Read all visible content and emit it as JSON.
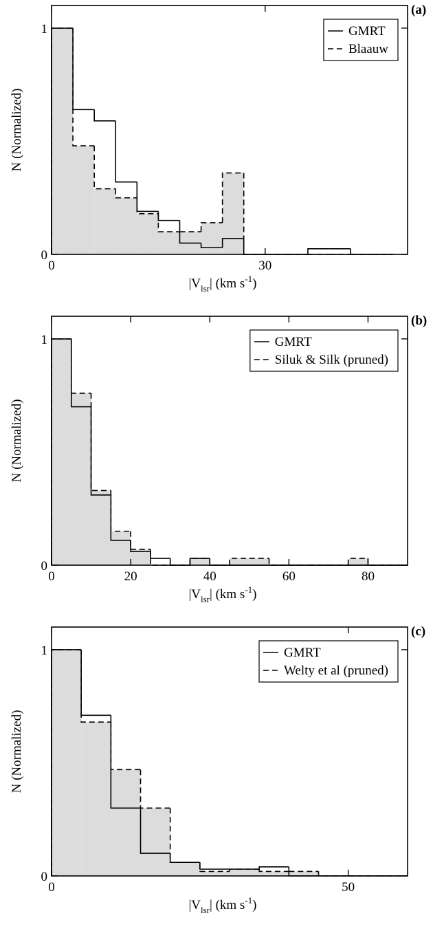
{
  "chart_data": [
    {
      "type": "histogram",
      "panel_label": "(a)",
      "ylabel": "N (Normalized)",
      "xlabel": {
        "start": "|V",
        "sub": "lsr",
        "mid": "| (km s",
        "sup": "-1",
        "end": ")"
      },
      "bins": [
        0,
        3,
        6,
        9,
        12,
        15,
        18,
        21,
        24,
        27,
        30,
        33,
        36,
        39,
        42,
        45,
        48
      ],
      "series": [
        {
          "name": "GMRT",
          "color": "#000000",
          "dash": false,
          "fill": null,
          "values": [
            1,
            0.64,
            0.59,
            0.32,
            0.19,
            0.15,
            0.05,
            0.03,
            0.07,
            0,
            0,
            0,
            0.025,
            0.025,
            0,
            0
          ]
        },
        {
          "name": "Blaauw",
          "color": "#000000",
          "dash": true,
          "fill": "#dcdcdc",
          "values": [
            1,
            0.48,
            0.29,
            0.25,
            0.18,
            0.1,
            0.1,
            0.14,
            0.36,
            0,
            0,
            0,
            0,
            0,
            0,
            0
          ]
        }
      ],
      "xlim": [
        0,
        50
      ],
      "ylim": [
        0,
        1.1
      ],
      "xticks": [
        0,
        30
      ],
      "yticks": [
        0,
        1
      ],
      "legend": "upper right"
    },
    {
      "type": "histogram",
      "panel_label": "(b)",
      "ylabel": "N (Normalized)",
      "xlabel": {
        "start": "|V",
        "sub": "lsr",
        "mid": "| (km s",
        "sup": "-1",
        "end": ")"
      },
      "bins": [
        0,
        5,
        10,
        15,
        20,
        25,
        30,
        35,
        40,
        45,
        50,
        55,
        60,
        65,
        70,
        75,
        80,
        85,
        90
      ],
      "series": [
        {
          "name": "GMRT",
          "color": "#000000",
          "dash": false,
          "fill": null,
          "values": [
            1,
            0.7,
            0.31,
            0.11,
            0.06,
            0.03,
            0,
            0.03,
            0,
            0,
            0,
            0,
            0,
            0,
            0,
            0,
            0,
            0
          ]
        },
        {
          "name": "Siluk & Silk (pruned)",
          "color": "#000000",
          "dash": true,
          "fill": "#dcdcdc",
          "values": [
            1,
            0.76,
            0.33,
            0.15,
            0.07,
            0,
            0,
            0.03,
            0,
            0.03,
            0.03,
            0,
            0,
            0,
            0,
            0.03,
            0,
            0
          ]
        }
      ],
      "xlim": [
        0,
        90
      ],
      "ylim": [
        0,
        1.1
      ],
      "xticks": [
        0,
        20,
        40,
        60,
        80
      ],
      "yticks": [
        0,
        1
      ],
      "legend": "upper right"
    },
    {
      "type": "histogram",
      "panel_label": "(c)",
      "ylabel": "N (Normalized)",
      "xlabel": {
        "start": "|V",
        "sub": "lsr",
        "mid": "| (km s",
        "sup": "-1",
        "end": ")"
      },
      "bins": [
        0,
        5,
        10,
        15,
        20,
        25,
        30,
        35,
        40,
        45,
        50,
        55,
        60
      ],
      "series": [
        {
          "name": "GMRT",
          "color": "#000000",
          "dash": false,
          "fill": null,
          "values": [
            1,
            0.71,
            0.3,
            0.1,
            0.06,
            0.03,
            0.03,
            0.04,
            0,
            0,
            0,
            0
          ]
        },
        {
          "name": "Welty et al (pruned)",
          "color": "#000000",
          "dash": true,
          "fill": "#dcdcdc",
          "values": [
            1,
            0.68,
            0.47,
            0.3,
            0.06,
            0.02,
            0.03,
            0.02,
            0.02,
            0,
            0,
            0
          ]
        }
      ],
      "xlim": [
        0,
        60
      ],
      "ylim": [
        0,
        1.1
      ],
      "xticks": [
        0,
        50
      ],
      "yticks": [
        0,
        1
      ],
      "legend": "upper right"
    }
  ]
}
